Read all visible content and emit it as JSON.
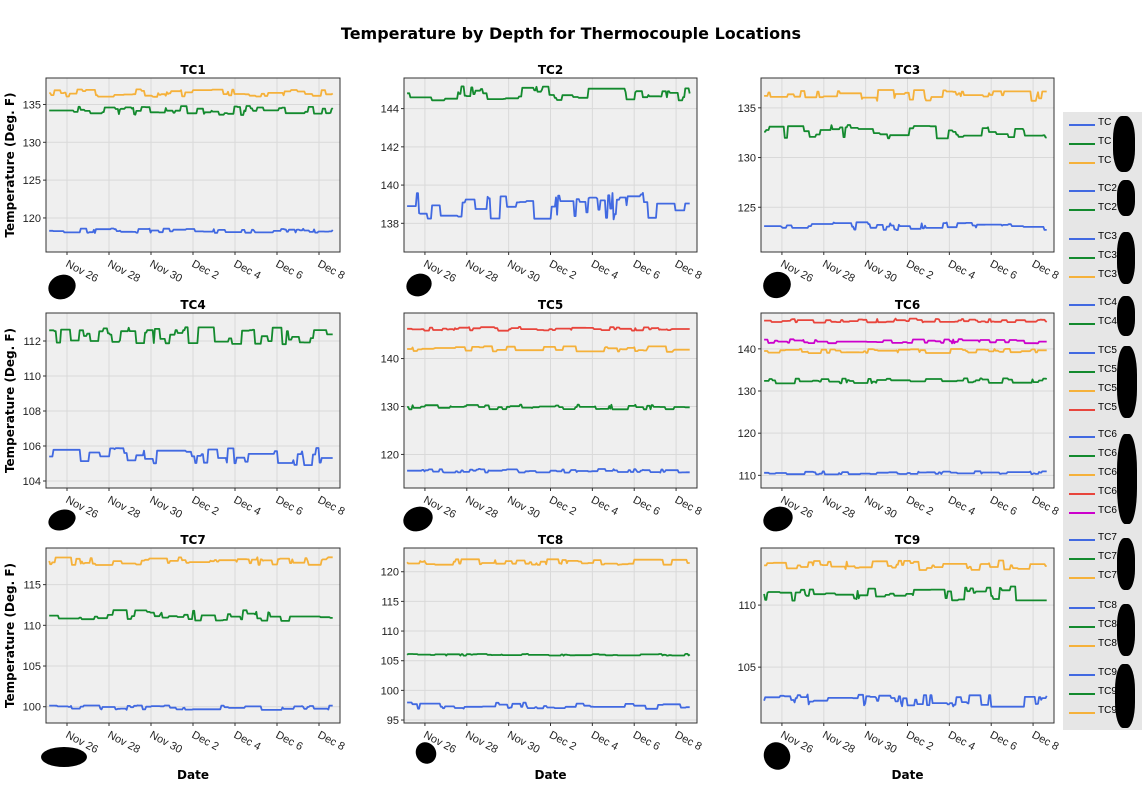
{
  "title": "Temperature by Depth for Thermocouple Locations",
  "y_axis_label": "Temperature (Deg. F)",
  "x_axis_label": "Date",
  "x_ticks": [
    "Nov 26",
    "Nov 28",
    "Nov 30",
    "Dec 2",
    "Dec 4",
    "Dec 6",
    "Dec 8"
  ],
  "colors": {
    "blue": "#4169e1",
    "green": "#138a2e",
    "orange": "#f5b13a",
    "red": "#e8453c",
    "magenta": "#cc00cc"
  },
  "chart_data": [
    {
      "type": "line",
      "title": "TC1",
      "xlim": [
        "2023-11-25",
        "2023-12-09"
      ],
      "ylim": [
        115.5,
        138.5
      ],
      "yticks": [
        120,
        125,
        130,
        135
      ],
      "series": [
        {
          "color": "orange",
          "level": 136.5,
          "spread": 0.5
        },
        {
          "color": "green",
          "level": 134.2,
          "spread": 0.6
        },
        {
          "color": "blue",
          "level": 118.3,
          "spread": 0.3
        }
      ]
    },
    {
      "type": "line",
      "title": "TC2",
      "xlim": [
        "2023-11-25",
        "2023-12-09"
      ],
      "ylim": [
        136.5,
        145.6
      ],
      "yticks": [
        138,
        140,
        142,
        144
      ],
      "series": [
        {
          "color": "green",
          "level": 144.8,
          "spread": 0.4
        },
        {
          "color": "blue",
          "level": 138.9,
          "spread": 0.7
        }
      ]
    },
    {
      "type": "line",
      "title": "TC3",
      "xlim": [
        "2023-11-25",
        "2023-12-09"
      ],
      "ylim": [
        120.5,
        138
      ],
      "yticks": [
        125,
        130,
        135
      ],
      "series": [
        {
          "color": "orange",
          "level": 136.2,
          "spread": 0.6
        },
        {
          "color": "green",
          "level": 132.6,
          "spread": 0.7
        },
        {
          "color": "blue",
          "level": 123.1,
          "spread": 0.4
        }
      ]
    },
    {
      "type": "line",
      "title": "TC4",
      "xlim": [
        "2023-11-25",
        "2023-12-09"
      ],
      "ylim": [
        103.6,
        113.6
      ],
      "yticks": [
        104,
        106,
        108,
        110,
        112
      ],
      "series": [
        {
          "color": "green",
          "level": 112.3,
          "spread": 0.5
        },
        {
          "color": "blue",
          "level": 105.4,
          "spread": 0.5
        }
      ]
    },
    {
      "type": "line",
      "title": "TC5",
      "xlim": [
        "2023-11-25",
        "2023-12-09"
      ],
      "ylim": [
        113,
        149.5
      ],
      "yticks": [
        120,
        130,
        140
      ],
      "series": [
        {
          "color": "red",
          "level": 146.2,
          "spread": 0.4
        },
        {
          "color": "orange",
          "level": 142,
          "spread": 0.6
        },
        {
          "color": "green",
          "level": 129.9,
          "spread": 0.5
        },
        {
          "color": "blue",
          "level": 116.6,
          "spread": 0.4
        }
      ]
    },
    {
      "type": "line",
      "title": "TC6",
      "xlim": [
        "2023-11-25",
        "2023-12-09"
      ],
      "ylim": [
        107,
        148.5
      ],
      "yticks": [
        110,
        120,
        130,
        140
      ],
      "series": [
        {
          "color": "red",
          "level": 146.7,
          "spread": 0.5
        },
        {
          "color": "magenta",
          "level": 141.8,
          "spread": 0.5
        },
        {
          "color": "orange",
          "level": 139.5,
          "spread": 0.5
        },
        {
          "color": "green",
          "level": 132.4,
          "spread": 0.6
        },
        {
          "color": "blue",
          "level": 110.6,
          "spread": 0.4
        }
      ]
    },
    {
      "type": "line",
      "title": "TC7",
      "xlim": [
        "2023-11-25",
        "2023-12-09"
      ],
      "ylim": [
        98,
        119.5
      ],
      "yticks": [
        100,
        105,
        110,
        115
      ],
      "series": [
        {
          "color": "orange",
          "level": 117.9,
          "spread": 0.5
        },
        {
          "color": "green",
          "level": 111.2,
          "spread": 0.7
        },
        {
          "color": "blue",
          "level": 99.9,
          "spread": 0.3
        }
      ]
    },
    {
      "type": "line",
      "title": "TC8",
      "xlim": [
        "2023-11-25",
        "2023-12-09"
      ],
      "ylim": [
        94.5,
        124
      ],
      "yticks": [
        95,
        100,
        105,
        110,
        115,
        120
      ],
      "series": [
        {
          "color": "orange",
          "level": 121.6,
          "spread": 0.5
        },
        {
          "color": "green",
          "level": 106,
          "spread": 0.15
        },
        {
          "color": "blue",
          "level": 97.4,
          "spread": 0.6
        }
      ]
    },
    {
      "type": "line",
      "title": "TC9",
      "xlim": [
        "2023-11-25",
        "2023-12-09"
      ],
      "ylim": [
        100.5,
        114.6
      ],
      "yticks": [
        105,
        110
      ],
      "series": [
        {
          "color": "orange",
          "level": 113.2,
          "spread": 0.4
        },
        {
          "color": "green",
          "level": 110.9,
          "spread": 0.6
        },
        {
          "color": "blue",
          "level": 102.3,
          "spread": 0.5
        }
      ]
    }
  ],
  "legend": {
    "groups": [
      {
        "entries": [
          {
            "label": "TC",
            "color": "blue"
          },
          {
            "label": "TC",
            "color": "green"
          },
          {
            "label": "TC",
            "color": "orange"
          }
        ]
      },
      {
        "entries": [
          {
            "label": "TC2",
            "color": "blue"
          },
          {
            "label": "TC2",
            "color": "green"
          }
        ]
      },
      {
        "entries": [
          {
            "label": "TC3",
            "color": "blue"
          },
          {
            "label": "TC3",
            "color": "green"
          },
          {
            "label": "TC3",
            "color": "orange"
          }
        ]
      },
      {
        "entries": [
          {
            "label": "TC4",
            "color": "blue"
          },
          {
            "label": "TC4",
            "color": "green"
          }
        ]
      },
      {
        "entries": [
          {
            "label": "TC5",
            "color": "blue"
          },
          {
            "label": "TC5",
            "color": "green"
          },
          {
            "label": "TC5",
            "color": "orange"
          },
          {
            "label": "TC5",
            "color": "red"
          }
        ]
      },
      {
        "entries": [
          {
            "label": "TC6",
            "color": "blue"
          },
          {
            "label": "TC6",
            "color": "green"
          },
          {
            "label": "TC6",
            "color": "orange"
          },
          {
            "label": "TC6",
            "color": "red"
          },
          {
            "label": "TC6",
            "color": "magenta"
          }
        ]
      },
      {
        "entries": [
          {
            "label": "TC7",
            "color": "blue"
          },
          {
            "label": "TC7",
            "color": "green"
          },
          {
            "label": "TC7",
            "color": "orange"
          }
        ]
      },
      {
        "entries": [
          {
            "label": "TC8",
            "color": "blue"
          },
          {
            "label": "TC8",
            "color": "green"
          },
          {
            "label": "TC8",
            "color": "orange"
          }
        ]
      },
      {
        "entries": [
          {
            "label": "TC9",
            "color": "blue"
          },
          {
            "label": "TC9",
            "color": "green"
          },
          {
            "label": "TC9",
            "color": "orange"
          }
        ]
      }
    ]
  }
}
